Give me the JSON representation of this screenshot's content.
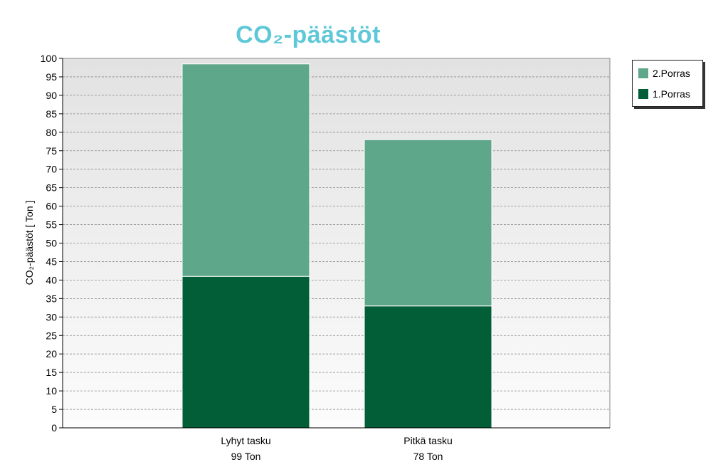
{
  "chart_data": {
    "type": "bar",
    "stacked": true,
    "title": "CO₂-päästöt",
    "ylabel": "CO₂-päästöt [ Ton ]",
    "xlabel": "",
    "ylim": [
      0,
      100
    ],
    "ytick_step": 5,
    "grid": true,
    "legend_position": "top-right",
    "categories": [
      "Lyhyt tasku",
      "Pitkä tasku"
    ],
    "category_sublabels": [
      "99 Ton",
      "78 Ton"
    ],
    "series": [
      {
        "name": "1.Porras",
        "values": [
          41,
          33
        ],
        "color": "#025e37"
      },
      {
        "name": "2.Porras",
        "values": [
          57.5,
          45
        ],
        "color": "#5ea78a"
      }
    ],
    "legend_order": [
      "2.Porras",
      "1.Porras"
    ]
  }
}
